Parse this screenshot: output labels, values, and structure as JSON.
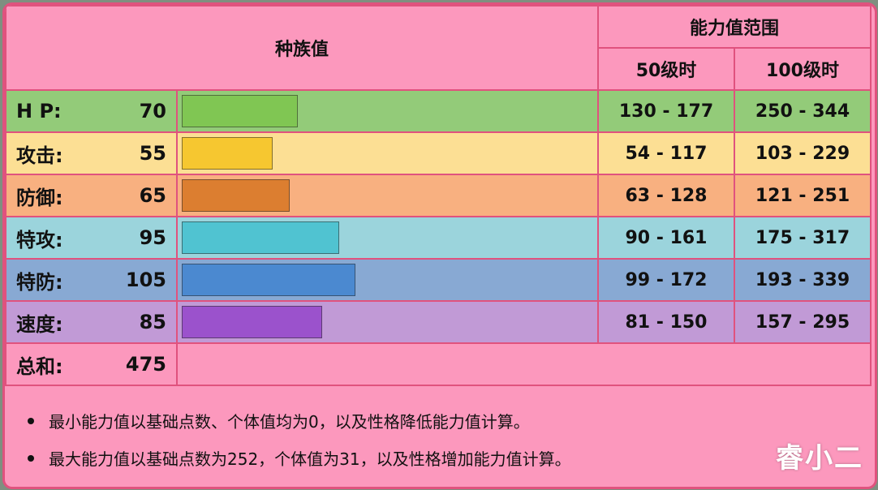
{
  "header": {
    "base_stats": "种族值",
    "stat_range": "能力值范围",
    "lv50": "50级时",
    "lv100": "100级时"
  },
  "stats": [
    {
      "label": "H P:",
      "value": "70",
      "range50": "130 - 177",
      "range100": "250 - 344",
      "row_color": "#93cb79",
      "bar_color": "#80c653"
    },
    {
      "label": "攻击:",
      "value": "55",
      "range50": "54 - 117",
      "range100": "103 - 229",
      "row_color": "#fcdf94",
      "bar_color": "#f6c730"
    },
    {
      "label": "防御:",
      "value": "65",
      "range50": "63 - 128",
      "range100": "121 - 251",
      "row_color": "#f8b080",
      "bar_color": "#dc7e30"
    },
    {
      "label": "特攻:",
      "value": "95",
      "range50": "90 - 161",
      "range100": "175 - 317",
      "row_color": "#9bd4dc",
      "bar_color": "#50c3d1"
    },
    {
      "label": "特防:",
      "value": "105",
      "range50": "99 - 172",
      "range100": "193 - 339",
      "row_color": "#88a9d3",
      "bar_color": "#4b89d0"
    },
    {
      "label": "速度:",
      "value": "85",
      "range50": "81 - 150",
      "range100": "157 - 295",
      "row_color": "#c19ad6",
      "bar_color": "#9b52cc"
    }
  ],
  "total": {
    "label": "总和:",
    "value": "475"
  },
  "notes": [
    "最小能力值以基础点数、个体值均为0，以及性格降低能力值计算。",
    "最大能力值以基础点数为252，个体值为31，以及性格增加能力值计算。"
  ],
  "watermark": "睿小二"
}
